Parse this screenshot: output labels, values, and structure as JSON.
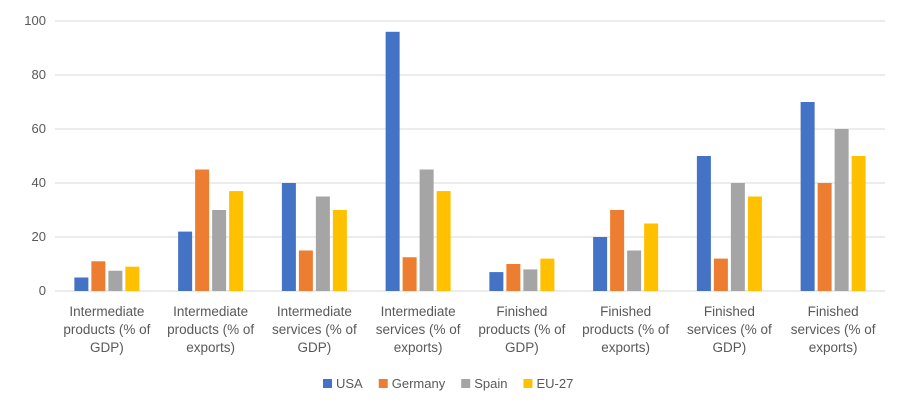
{
  "chart_data": {
    "type": "bar",
    "title": "",
    "xlabel": "",
    "ylabel": "",
    "ylim": [
      0,
      100
    ],
    "yticks": [
      0,
      20,
      40,
      60,
      80,
      100
    ],
    "grid": true,
    "legend_position": "bottom",
    "categories": [
      [
        "Intermediate",
        "products (% of",
        "GDP)"
      ],
      [
        "Intermediate",
        "products (% of",
        "exports)"
      ],
      [
        "Intermediate",
        "services (% of",
        "GDP)"
      ],
      [
        "Intermediate",
        "services (% of",
        "exports)"
      ],
      [
        "Finished",
        "products (% of",
        "GDP)"
      ],
      [
        "Finished",
        "products (% of",
        "exports)"
      ],
      [
        "Finished",
        "services (% of",
        "GDP)"
      ],
      [
        "Finished",
        "services (% of",
        "exports)"
      ]
    ],
    "series": [
      {
        "name": "USA",
        "color": "#4472C4",
        "values": [
          5,
          22,
          40,
          96,
          7,
          20,
          50,
          70
        ]
      },
      {
        "name": "Germany",
        "color": "#ED7D31",
        "values": [
          11,
          45,
          15,
          12.5,
          10,
          30,
          12,
          40
        ]
      },
      {
        "name": "Spain",
        "color": "#A5A5A5",
        "values": [
          7.5,
          30,
          35,
          45,
          8,
          15,
          40,
          60
        ]
      },
      {
        "name": "EU-27",
        "color": "#FFC000",
        "values": [
          9,
          37,
          30,
          37,
          12,
          25,
          35,
          50
        ]
      }
    ]
  }
}
